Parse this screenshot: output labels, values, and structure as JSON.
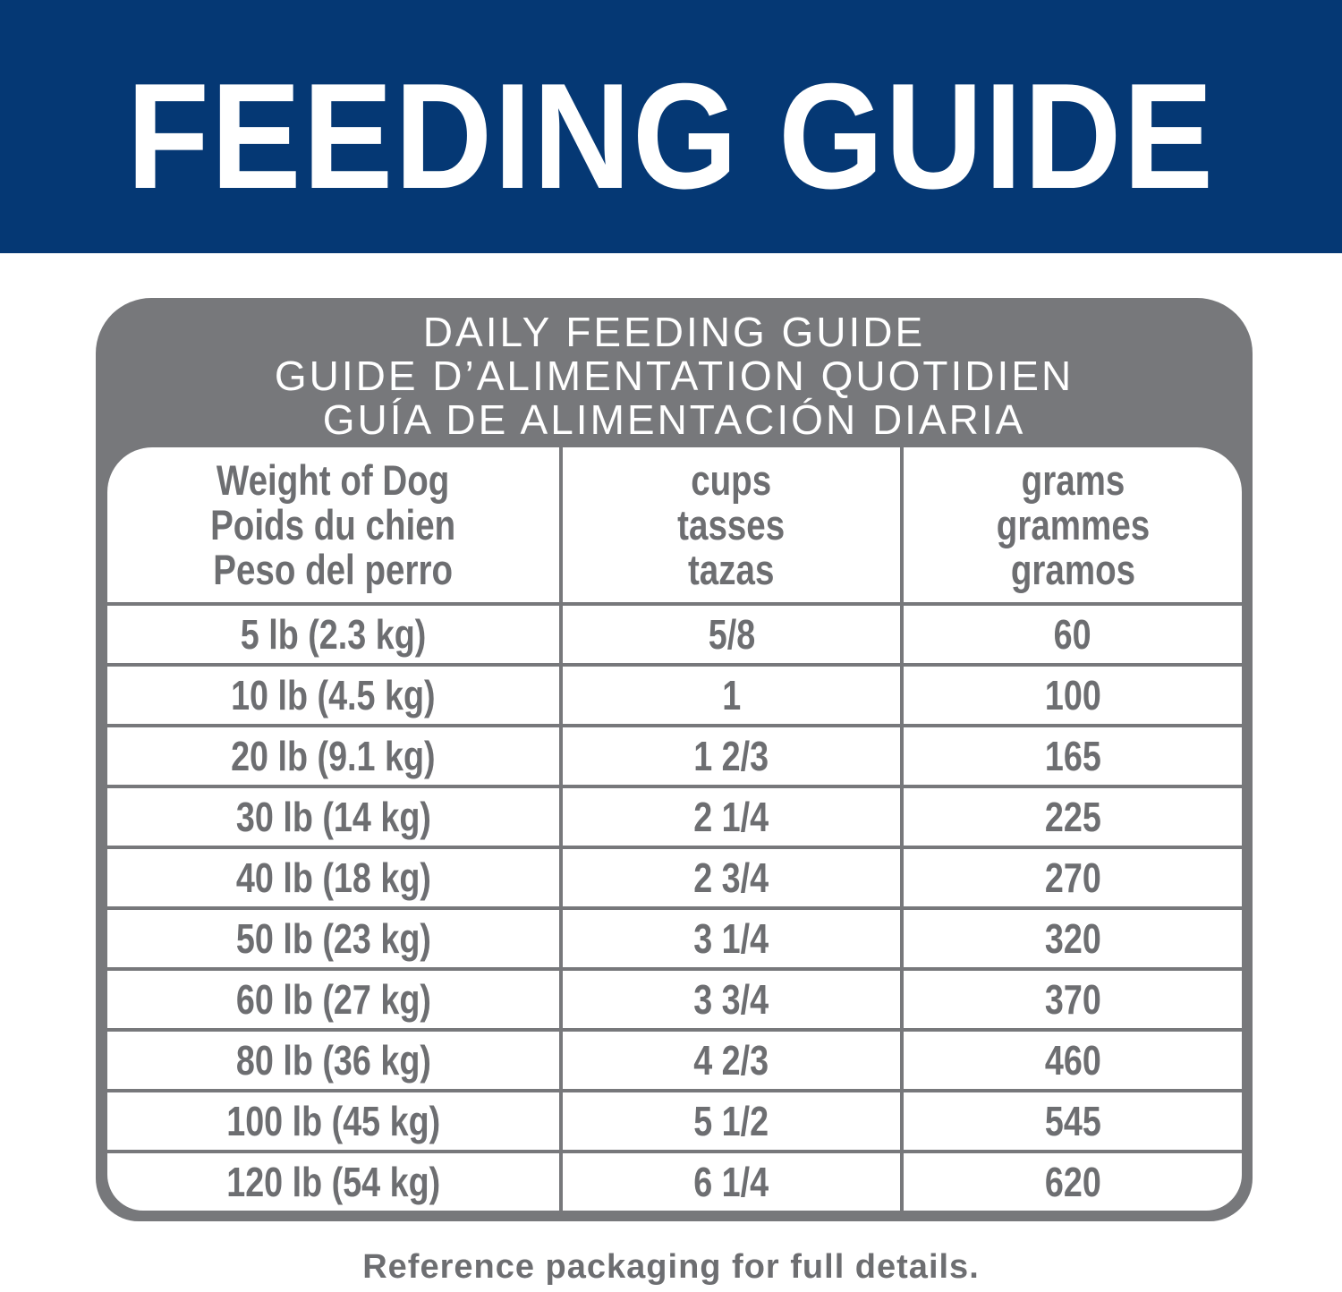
{
  "banner": {
    "title": "FEEDING GUIDE",
    "color": "#053874"
  },
  "panel": {
    "title_lines": [
      "DAILY FEEDING GUIDE",
      "GUIDE D’ALIMENTATION QUOTIDIEN",
      "GUÍA DE ALIMENTACIÓN DIARIA"
    ],
    "color": "#77787b"
  },
  "table": {
    "headers": [
      [
        "Weight of Dog",
        "Poids du chien",
        "Peso del perro"
      ],
      [
        "cups",
        "tasses",
        "tazas"
      ],
      [
        "grams",
        "grammes",
        "gramos"
      ]
    ],
    "rows": [
      {
        "weight": "5 lb (2.3 kg)",
        "cups": "5/8",
        "grams": "60"
      },
      {
        "weight": "10 lb (4.5 kg)",
        "cups": "1",
        "grams": "100"
      },
      {
        "weight": "20 lb (9.1 kg)",
        "cups": "1 2/3",
        "grams": "165"
      },
      {
        "weight": "30 lb (14 kg)",
        "cups": "2 1/4",
        "grams": "225"
      },
      {
        "weight": "40 lb (18 kg)",
        "cups": "2 3/4",
        "grams": "270"
      },
      {
        "weight": "50 lb (23 kg)",
        "cups": "3 1/4",
        "grams": "320"
      },
      {
        "weight": "60 lb (27 kg)",
        "cups": "3 3/4",
        "grams": "370"
      },
      {
        "weight": "80 lb (36 kg)",
        "cups": "4 2/3",
        "grams": "460"
      },
      {
        "weight": "100 lb (45 kg)",
        "cups": "5 1/2",
        "grams": "545"
      },
      {
        "weight": "120 lb (54 kg)",
        "cups": "6 1/4",
        "grams": "620"
      }
    ]
  },
  "footer": "Reference packaging for full details."
}
